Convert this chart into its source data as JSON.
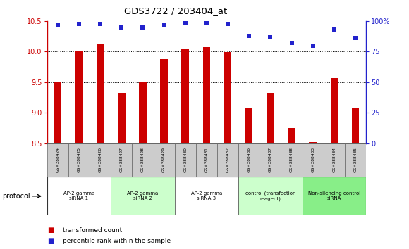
{
  "title": "GDS3722 / 203404_at",
  "samples": [
    "GSM388424",
    "GSM388425",
    "GSM388426",
    "GSM388427",
    "GSM388428",
    "GSM388429",
    "GSM388430",
    "GSM388431",
    "GSM388432",
    "GSM388436",
    "GSM388437",
    "GSM388438",
    "GSM388433",
    "GSM388434",
    "GSM388435"
  ],
  "bar_values": [
    9.5,
    10.02,
    10.12,
    9.32,
    9.5,
    9.88,
    10.05,
    10.07,
    9.99,
    9.07,
    9.33,
    8.75,
    8.52,
    9.57,
    9.07
  ],
  "percentile_values": [
    97,
    98,
    98,
    95,
    95,
    97,
    99,
    99,
    98,
    88,
    87,
    82,
    80,
    93,
    86
  ],
  "bar_color": "#cc0000",
  "percentile_color": "#2222cc",
  "ylim_left": [
    8.5,
    10.5
  ],
  "ylim_right": [
    0,
    100
  ],
  "yticks_left": [
    8.5,
    9.0,
    9.5,
    10.0,
    10.5
  ],
  "yticks_right": [
    0,
    25,
    50,
    75,
    100
  ],
  "grid_lines": [
    9.0,
    9.5,
    10.0
  ],
  "groups": [
    {
      "label": "AP-2 gamma\nsiRNA 1",
      "start": 0,
      "end": 3,
      "color": "#ffffff"
    },
    {
      "label": "AP-2 gamma\nsiRNA 2",
      "start": 3,
      "end": 6,
      "color": "#ccffcc"
    },
    {
      "label": "AP-2 gamma\nsiRNA 3",
      "start": 6,
      "end": 9,
      "color": "#ffffff"
    },
    {
      "label": "control (transfection\nreagent)",
      "start": 9,
      "end": 12,
      "color": "#ccffcc"
    },
    {
      "label": "Non-silencing control\nsiRNA",
      "start": 12,
      "end": 15,
      "color": "#88ee88"
    }
  ],
  "protocol_label": "protocol",
  "legend_red_label": "transformed count",
  "legend_blue_label": "percentile rank within the sample",
  "bar_width": 0.35,
  "bg_color": "#ffffff",
  "sample_box_color": "#cccccc",
  "right_pct_label": "100%"
}
